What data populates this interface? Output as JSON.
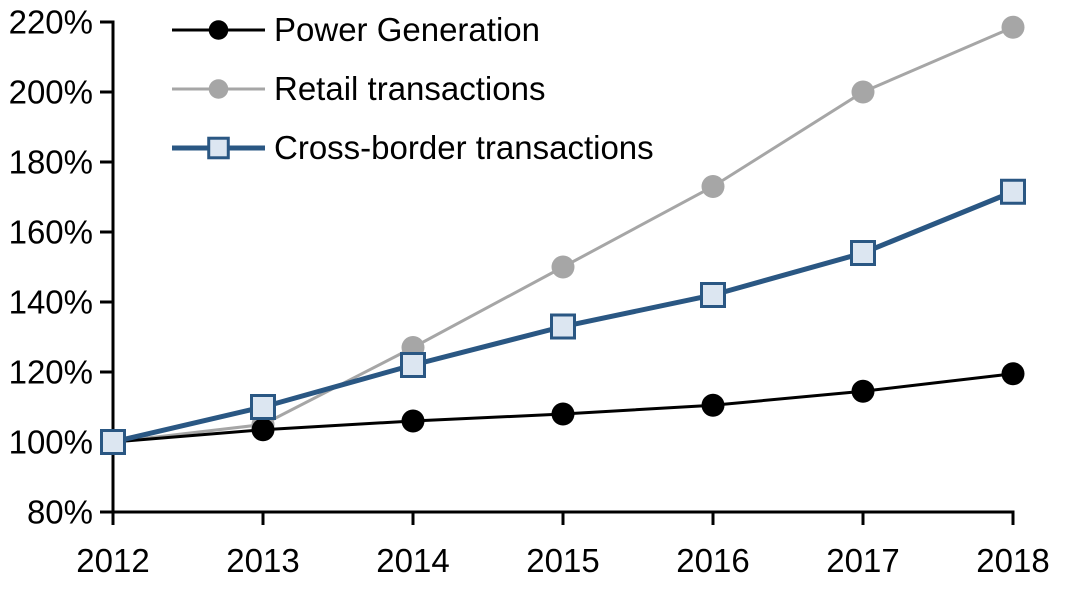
{
  "chart_data": {
    "type": "line",
    "title": "",
    "xlabel": "",
    "ylabel": "",
    "categories": [
      "2012",
      "2013",
      "2014",
      "2015",
      "2016",
      "2017",
      "2018"
    ],
    "series": [
      {
        "name": "Power Generation",
        "values": [
          100,
          103.5,
          106,
          108,
          110.5,
          114.5,
          119.5
        ],
        "color": "#000000",
        "marker": "circle",
        "line_width": 3
      },
      {
        "name": "Retail transactions",
        "values": [
          100,
          105,
          127,
          150,
          173,
          200,
          218.5
        ],
        "color": "#A6A6A6",
        "marker": "circle",
        "line_width": 3
      },
      {
        "name": "Cross-border transactions",
        "values": [
          100,
          110,
          122,
          133,
          142,
          154,
          171.5
        ],
        "color": "#2A5783",
        "marker": "square",
        "marker_fill": "#DCE6F1",
        "line_width": 5
      }
    ],
    "ylim": [
      80,
      220
    ],
    "ytick_step": 20,
    "y_tick_labels": [
      "80%",
      "100%",
      "120%",
      "140%",
      "160%",
      "180%",
      "200%",
      "220%"
    ],
    "grid": false,
    "legend_position": "top-left-inside",
    "axis_color": "#000000"
  }
}
